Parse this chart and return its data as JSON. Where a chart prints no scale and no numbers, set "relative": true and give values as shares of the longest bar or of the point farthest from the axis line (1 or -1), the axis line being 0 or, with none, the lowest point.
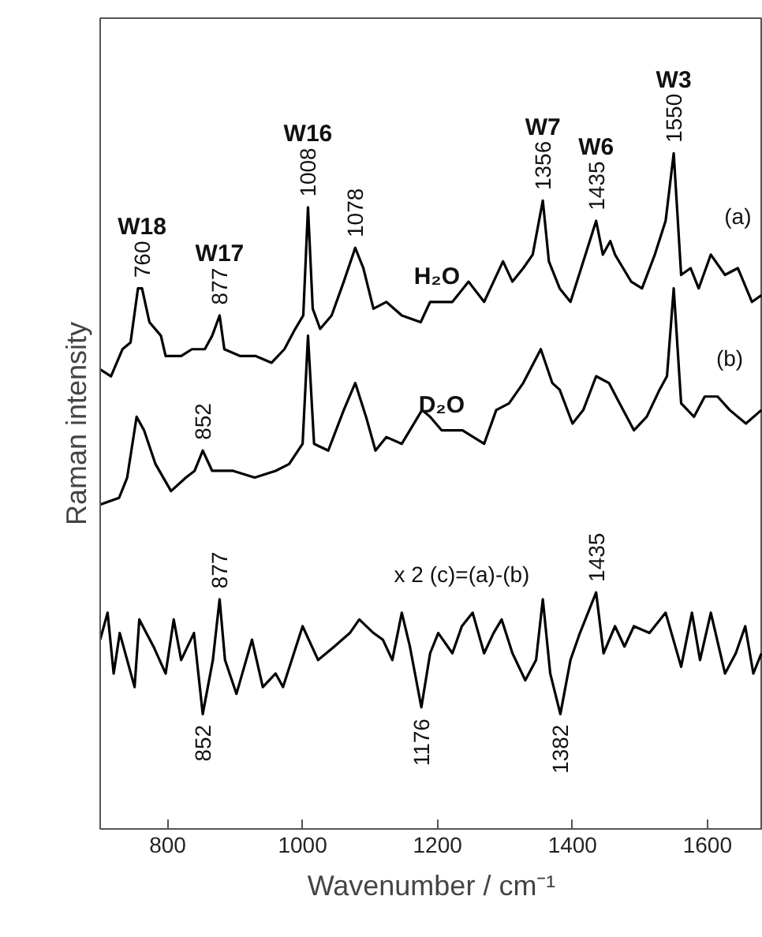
{
  "chart_data": {
    "type": "line",
    "xlabel": "Wavenumber / cm⁻¹",
    "ylabel": "Raman intensity",
    "relative": true,
    "xlim": [
      700,
      1682
    ],
    "xticks": [
      800,
      1000,
      1200,
      1400,
      1600
    ],
    "grid": false,
    "marker": "none",
    "line_style": "solid",
    "series": [
      {
        "color": "#000000",
        "x": [
          700,
          716,
          733,
          745,
          756,
          762,
          773,
          790,
          797,
          820,
          836,
          855,
          866,
          877,
          884,
          907,
          930,
          954,
          973,
          989,
          1001,
          1008,
          1015,
          1026,
          1043,
          1061,
          1078,
          1090,
          1105,
          1124,
          1147,
          1175,
          1189,
          1199,
          1222,
          1246,
          1269,
          1283,
          1297,
          1311,
          1327,
          1341,
          1356,
          1365,
          1381,
          1397,
          1416,
          1435,
          1445,
          1456,
          1463,
          1475,
          1487,
          1503,
          1522,
          1538,
          1550,
          1561,
          1575,
          1587,
          1605,
          1626,
          1645,
          1666,
          1680
        ],
        "values": [
          0.68,
          0.67,
          0.71,
          0.72,
          0.8,
          0.8,
          0.75,
          0.73,
          0.7,
          0.7,
          0.71,
          0.71,
          0.73,
          0.76,
          0.71,
          0.7,
          0.7,
          0.69,
          0.71,
          0.74,
          0.76,
          0.92,
          0.77,
          0.74,
          0.76,
          0.81,
          0.86,
          0.83,
          0.77,
          0.78,
          0.76,
          0.75,
          0.78,
          0.78,
          0.78,
          0.81,
          0.78,
          0.81,
          0.84,
          0.81,
          0.83,
          0.85,
          0.93,
          0.84,
          0.8,
          0.78,
          0.84,
          0.9,
          0.85,
          0.87,
          0.85,
          0.83,
          0.81,
          0.8,
          0.85,
          0.9,
          1.0,
          0.82,
          0.83,
          0.8,
          0.85,
          0.82,
          0.83,
          0.78,
          0.79
        ]
      },
      {
        "color": "#000000",
        "x": [
          700,
          728,
          740,
          754,
          765,
          782,
          805,
          827,
          840,
          852,
          866,
          897,
          929,
          960,
          980,
          1000,
          1008,
          1017,
          1038,
          1061,
          1078,
          1094,
          1108,
          1124,
          1147,
          1177,
          1189,
          1206,
          1237,
          1269,
          1287,
          1306,
          1327,
          1353,
          1370,
          1381,
          1400,
          1416,
          1435,
          1454,
          1475,
          1491,
          1510,
          1529,
          1540,
          1550,
          1561,
          1580,
          1596,
          1615,
          1633,
          1657,
          1680
        ],
        "values": [
          0.48,
          0.49,
          0.52,
          0.61,
          0.59,
          0.54,
          0.5,
          0.52,
          0.53,
          0.56,
          0.53,
          0.53,
          0.52,
          0.53,
          0.54,
          0.57,
          0.73,
          0.57,
          0.56,
          0.62,
          0.66,
          0.61,
          0.56,
          0.58,
          0.57,
          0.62,
          0.61,
          0.59,
          0.59,
          0.57,
          0.62,
          0.63,
          0.66,
          0.71,
          0.66,
          0.65,
          0.6,
          0.62,
          0.67,
          0.66,
          0.62,
          0.59,
          0.61,
          0.65,
          0.67,
          0.8,
          0.63,
          0.61,
          0.64,
          0.64,
          0.62,
          0.6,
          0.62
        ]
      },
      {
        "color": "#000000",
        "x": [
          700,
          711,
          720,
          729,
          751,
          758,
          779,
          797,
          809,
          820,
          839,
          852,
          867,
          877,
          885,
          902,
          925,
          941,
          960,
          971,
          1000,
          1023,
          1047,
          1070,
          1084,
          1105,
          1119,
          1133,
          1147,
          1159,
          1176,
          1189,
          1201,
          1222,
          1236,
          1252,
          1269,
          1283,
          1295,
          1311,
          1330,
          1346,
          1356,
          1367,
          1382,
          1397,
          1411,
          1435,
          1446,
          1463,
          1477,
          1491,
          1514,
          1538,
          1561,
          1577,
          1589,
          1605,
          1626,
          1642,
          1656,
          1668,
          1680
        ],
        "values": [
          0.28,
          0.32,
          0.23,
          0.29,
          0.21,
          0.31,
          0.27,
          0.23,
          0.31,
          0.25,
          0.29,
          0.17,
          0.25,
          0.34,
          0.25,
          0.2,
          0.28,
          0.21,
          0.23,
          0.21,
          0.3,
          0.25,
          0.27,
          0.29,
          0.31,
          0.29,
          0.28,
          0.25,
          0.32,
          0.27,
          0.18,
          0.26,
          0.29,
          0.26,
          0.3,
          0.32,
          0.26,
          0.29,
          0.31,
          0.26,
          0.22,
          0.25,
          0.34,
          0.23,
          0.17,
          0.25,
          0.29,
          0.35,
          0.26,
          0.3,
          0.27,
          0.3,
          0.29,
          0.32,
          0.24,
          0.32,
          0.25,
          0.32,
          0.23,
          0.26,
          0.3,
          0.23,
          0.26
        ]
      }
    ],
    "annotations": [
      {
        "text": "760",
        "x": 762,
        "y": 0.8
      },
      {
        "text": "877",
        "x": 877,
        "y": 0.76
      },
      {
        "text": "1008",
        "x": 1008,
        "y": 0.92
      },
      {
        "text": "1078",
        "x": 1078,
        "y": 0.86
      },
      {
        "text": "852",
        "x": 852,
        "y": 0.56
      },
      {
        "text": "1356",
        "x": 1356,
        "y": 0.93
      },
      {
        "text": "1435",
        "x": 1435,
        "y": 0.9
      },
      {
        "text": "1550",
        "x": 1550,
        "y": 1.0
      },
      {
        "text": "877",
        "x": 877,
        "y": 0.34
      },
      {
        "text": "852",
        "x": 852,
        "y": 0.17
      },
      {
        "text": "1176",
        "x": 1176,
        "y": 0.18
      },
      {
        "text": "1382",
        "x": 1382,
        "y": 0.17
      },
      {
        "text": "1435",
        "x": 1435,
        "y": 0.35
      },
      {
        "text": "W18",
        "x": 762,
        "y": 0.8
      },
      {
        "text": "W17",
        "x": 877,
        "y": 0.76
      },
      {
        "text": "W16",
        "x": 1008,
        "y": 0.92
      },
      {
        "text": "W7",
        "x": 1356,
        "y": 0.93
      },
      {
        "text": "W6",
        "x": 1435,
        "y": 0.9
      },
      {
        "text": "W3",
        "x": 1550,
        "y": 1.0
      },
      {
        "text": "H₂O",
        "x": 1199,
        "y": 0.78
      },
      {
        "text": "D₂O",
        "x": 1206,
        "y": 0.59
      },
      {
        "text": "(a)",
        "x": 1645,
        "y": 0.83
      },
      {
        "text": "(b)",
        "x": 1633,
        "y": 0.62
      },
      {
        "text": "x 2 (c)=(a)-(b)",
        "x": 1236,
        "y": 0.3
      }
    ]
  }
}
